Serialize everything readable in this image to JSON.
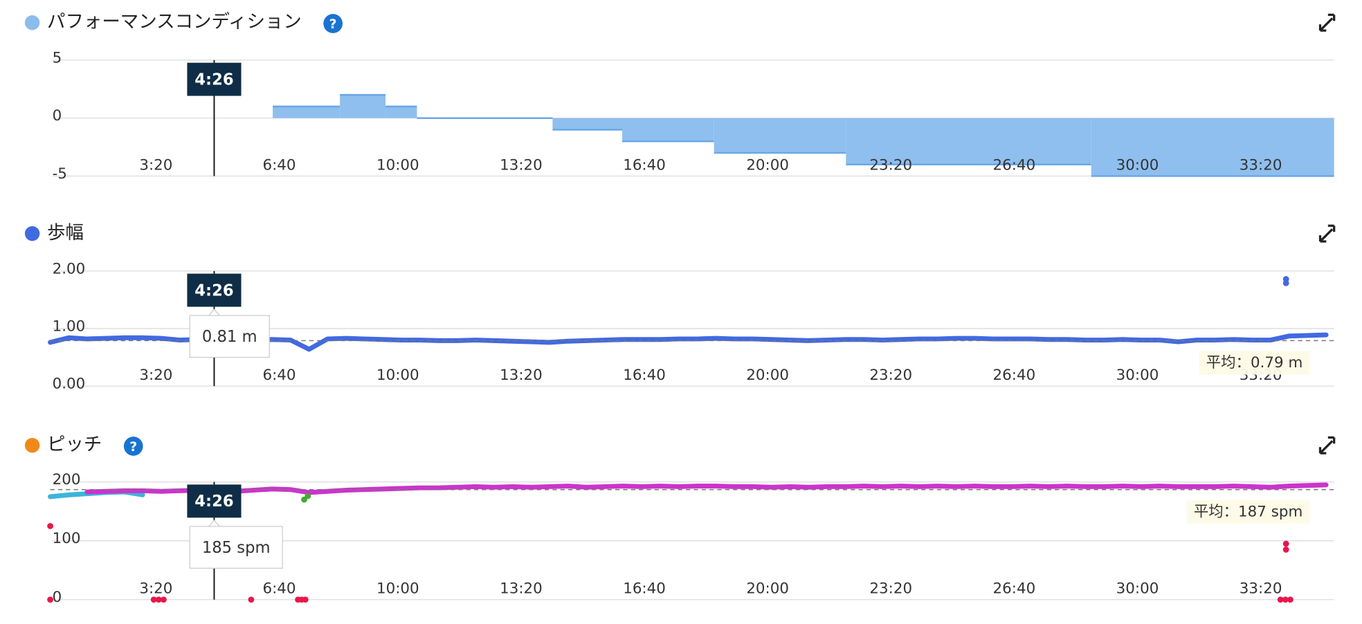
{
  "chart_data": [
    {
      "type": "area",
      "step": true,
      "title": "パフォーマンスコンディション",
      "legend_color": "#8cbcec",
      "help_icon": true,
      "color": "#8fbfee",
      "edge_color": "#6aa8e8",
      "x": [
        361,
        470,
        544,
        595,
        815,
        928,
        1077,
        1291,
        1689
      ],
      "values": [
        1,
        2,
        1,
        0,
        -1,
        -2,
        -3,
        -4,
        -5
      ],
      "xlim": [
        0,
        2083
      ],
      "xticks": [
        {
          "value": 200,
          "label": "3:20"
        },
        {
          "value": 400,
          "label": "6:40"
        },
        {
          "value": 600,
          "label": "10:00"
        },
        {
          "value": 800,
          "label": "13:20"
        },
        {
          "value": 1000,
          "label": "16:40"
        },
        {
          "value": 1200,
          "label": "20:00"
        },
        {
          "value": 1400,
          "label": "23:20"
        },
        {
          "value": 1600,
          "label": "26:40"
        },
        {
          "value": 1800,
          "label": "30:00"
        },
        {
          "value": 2000,
          "label": "33:20"
        }
      ],
      "ylim": [
        -5,
        5
      ],
      "yticks": [
        -5,
        0,
        5
      ],
      "grid": true,
      "cursor": {
        "value": 266,
        "label": "4:26"
      }
    },
    {
      "type": "scatter",
      "title": "歩幅",
      "legend_color": "#3f6ae0",
      "help_icon": false,
      "series": [
        {
          "type": "line",
          "color": "#4169e1",
          "x": [
            0,
            30,
            60,
            90,
            120,
            150,
            180,
            210,
            240,
            270,
            300,
            330,
            360,
            390,
            420,
            450,
            480,
            510,
            540,
            570,
            600,
            630,
            660,
            690,
            720,
            750,
            780,
            810,
            840,
            870,
            900,
            930,
            960,
            990,
            1020,
            1050,
            1080,
            1110,
            1140,
            1170,
            1200,
            1230,
            1260,
            1290,
            1320,
            1350,
            1380,
            1410,
            1440,
            1470,
            1500,
            1530,
            1560,
            1590,
            1620,
            1650,
            1680,
            1710,
            1740,
            1770,
            1800,
            1830,
            1860,
            1890,
            1920,
            1950,
            1980,
            2010,
            2040,
            2070
          ],
          "values": [
            0.76,
            0.84,
            0.82,
            0.83,
            0.84,
            0.84,
            0.83,
            0.8,
            0.81,
            0.81,
            0.82,
            0.8,
            0.81,
            0.8,
            0.64,
            0.82,
            0.83,
            0.82,
            0.81,
            0.8,
            0.8,
            0.79,
            0.79,
            0.8,
            0.79,
            0.78,
            0.77,
            0.76,
            0.78,
            0.79,
            0.8,
            0.81,
            0.81,
            0.81,
            0.82,
            0.82,
            0.83,
            0.82,
            0.82,
            0.81,
            0.8,
            0.79,
            0.8,
            0.81,
            0.81,
            0.8,
            0.81,
            0.82,
            0.82,
            0.83,
            0.83,
            0.82,
            0.82,
            0.82,
            0.81,
            0.81,
            0.8,
            0.8,
            0.81,
            0.8,
            0.8,
            0.77,
            0.8,
            0.8,
            0.81,
            0.8,
            0.8,
            0.87,
            0.88,
            0.89
          ]
        },
        {
          "type": "scatter",
          "color": "#4169e1",
          "x": [
            2005,
            2005
          ],
          "values": [
            1.86,
            1.79
          ]
        }
      ],
      "xlim": [
        0,
        2083
      ],
      "xticks": [
        {
          "value": 200,
          "label": "3:20"
        },
        {
          "value": 400,
          "label": "6:40"
        },
        {
          "value": 600,
          "label": "10:00"
        },
        {
          "value": 800,
          "label": "13:20"
        },
        {
          "value": 1000,
          "label": "16:40"
        },
        {
          "value": 1200,
          "label": "20:00"
        },
        {
          "value": 1400,
          "label": "23:20"
        },
        {
          "value": 1600,
          "label": "26:40"
        },
        {
          "value": 1800,
          "label": "30:00"
        },
        {
          "value": 2000,
          "label": "33:20"
        }
      ],
      "ylim": [
        0,
        2
      ],
      "yticks": [
        {
          "value": 0,
          "label": "0.00"
        },
        {
          "value": 1,
          "label": "1.00"
        },
        {
          "value": 2,
          "label": "2.00"
        }
      ],
      "grid": true,
      "cursor": {
        "value": 266,
        "label": "4:26"
      },
      "cursor_value": {
        "value": 0.81,
        "label": "0.81 m"
      },
      "average": {
        "value": 0.79,
        "label": "平均：0.79 m"
      }
    },
    {
      "type": "scatter",
      "title": "ピッチ",
      "legend_color": "#ef8a1a",
      "help_icon": true,
      "series": [
        {
          "type": "line",
          "color": "#3cb4dc",
          "x": [
            0,
            30,
            60,
            90,
            120,
            150
          ],
          "values": [
            175,
            178,
            180,
            182,
            183,
            178
          ]
        },
        {
          "type": "line",
          "color": "#cc33cc",
          "x": [
            60,
            90,
            120,
            150,
            180,
            210,
            240,
            270,
            300,
            330,
            360,
            390,
            420,
            450,
            480,
            510,
            540,
            570,
            600,
            630,
            660,
            690,
            720,
            750,
            780,
            810,
            840,
            870,
            900,
            930,
            960,
            990,
            1020,
            1050,
            1080,
            1110,
            1140,
            1170,
            1200,
            1230,
            1260,
            1290,
            1320,
            1350,
            1380,
            1410,
            1440,
            1470,
            1500,
            1530,
            1560,
            1590,
            1620,
            1650,
            1680,
            1710,
            1740,
            1770,
            1800,
            1830,
            1860,
            1890,
            1920,
            1950,
            1980,
            2010,
            2040,
            2070
          ],
          "values": [
            183,
            184,
            185,
            185,
            184,
            185,
            186,
            185,
            184,
            186,
            188,
            187,
            182,
            184,
            186,
            187,
            188,
            189,
            190,
            190,
            191,
            192,
            191,
            192,
            191,
            192,
            193,
            191,
            192,
            193,
            192,
            193,
            192,
            193,
            193,
            192,
            192,
            191,
            192,
            191,
            192,
            192,
            193,
            192,
            193,
            192,
            193,
            192,
            193,
            192,
            192,
            193,
            192,
            193,
            192,
            192,
            193,
            192,
            193,
            192,
            192,
            192,
            193,
            192,
            191,
            193,
            194,
            195
          ]
        },
        {
          "type": "scatter",
          "color": "#44aa33",
          "x": [
            412,
            418
          ],
          "values": [
            170,
            176
          ]
        },
        {
          "type": "scatter",
          "color": "#e8174a",
          "x": [
            0,
            0,
            168,
            176,
            184,
            326,
            402,
            408,
            414,
            1996,
            2004,
            2012,
            2005,
            2005
          ],
          "values": [
            0,
            125,
            0,
            0,
            0,
            0,
            0,
            0,
            0,
            0,
            0,
            0,
            85,
            95
          ]
        }
      ],
      "xlim": [
        0,
        2083
      ],
      "xticks": [
        {
          "value": 200,
          "label": "3:20"
        },
        {
          "value": 400,
          "label": "6:40"
        },
        {
          "value": 600,
          "label": "10:00"
        },
        {
          "value": 800,
          "label": "13:20"
        },
        {
          "value": 1000,
          "label": "16:40"
        },
        {
          "value": 1200,
          "label": "20:00"
        },
        {
          "value": 1400,
          "label": "23:20"
        },
        {
          "value": 1600,
          "label": "26:40"
        },
        {
          "value": 1800,
          "label": "30:00"
        },
        {
          "value": 2000,
          "label": "33:20"
        }
      ],
      "ylim": [
        0,
        200
      ],
      "yticks": [
        0,
        100,
        200
      ],
      "grid": true,
      "cursor": {
        "value": 266,
        "label": "4:26"
      },
      "cursor_value": {
        "value": 185,
        "label": "185 spm"
      },
      "average": {
        "value": 187,
        "label": "平均：187 spm"
      }
    }
  ]
}
